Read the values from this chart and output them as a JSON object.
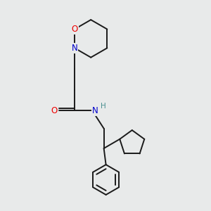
{
  "bg_color": "#e8eaea",
  "bond_color": "#1a1a1a",
  "atom_colors": {
    "O": "#ee0000",
    "N": "#0000cc",
    "H": "#4a9090"
  },
  "figsize": [
    3.0,
    3.0
  ],
  "dpi": 100,
  "lw": 1.4,
  "fontsize": 8.5
}
